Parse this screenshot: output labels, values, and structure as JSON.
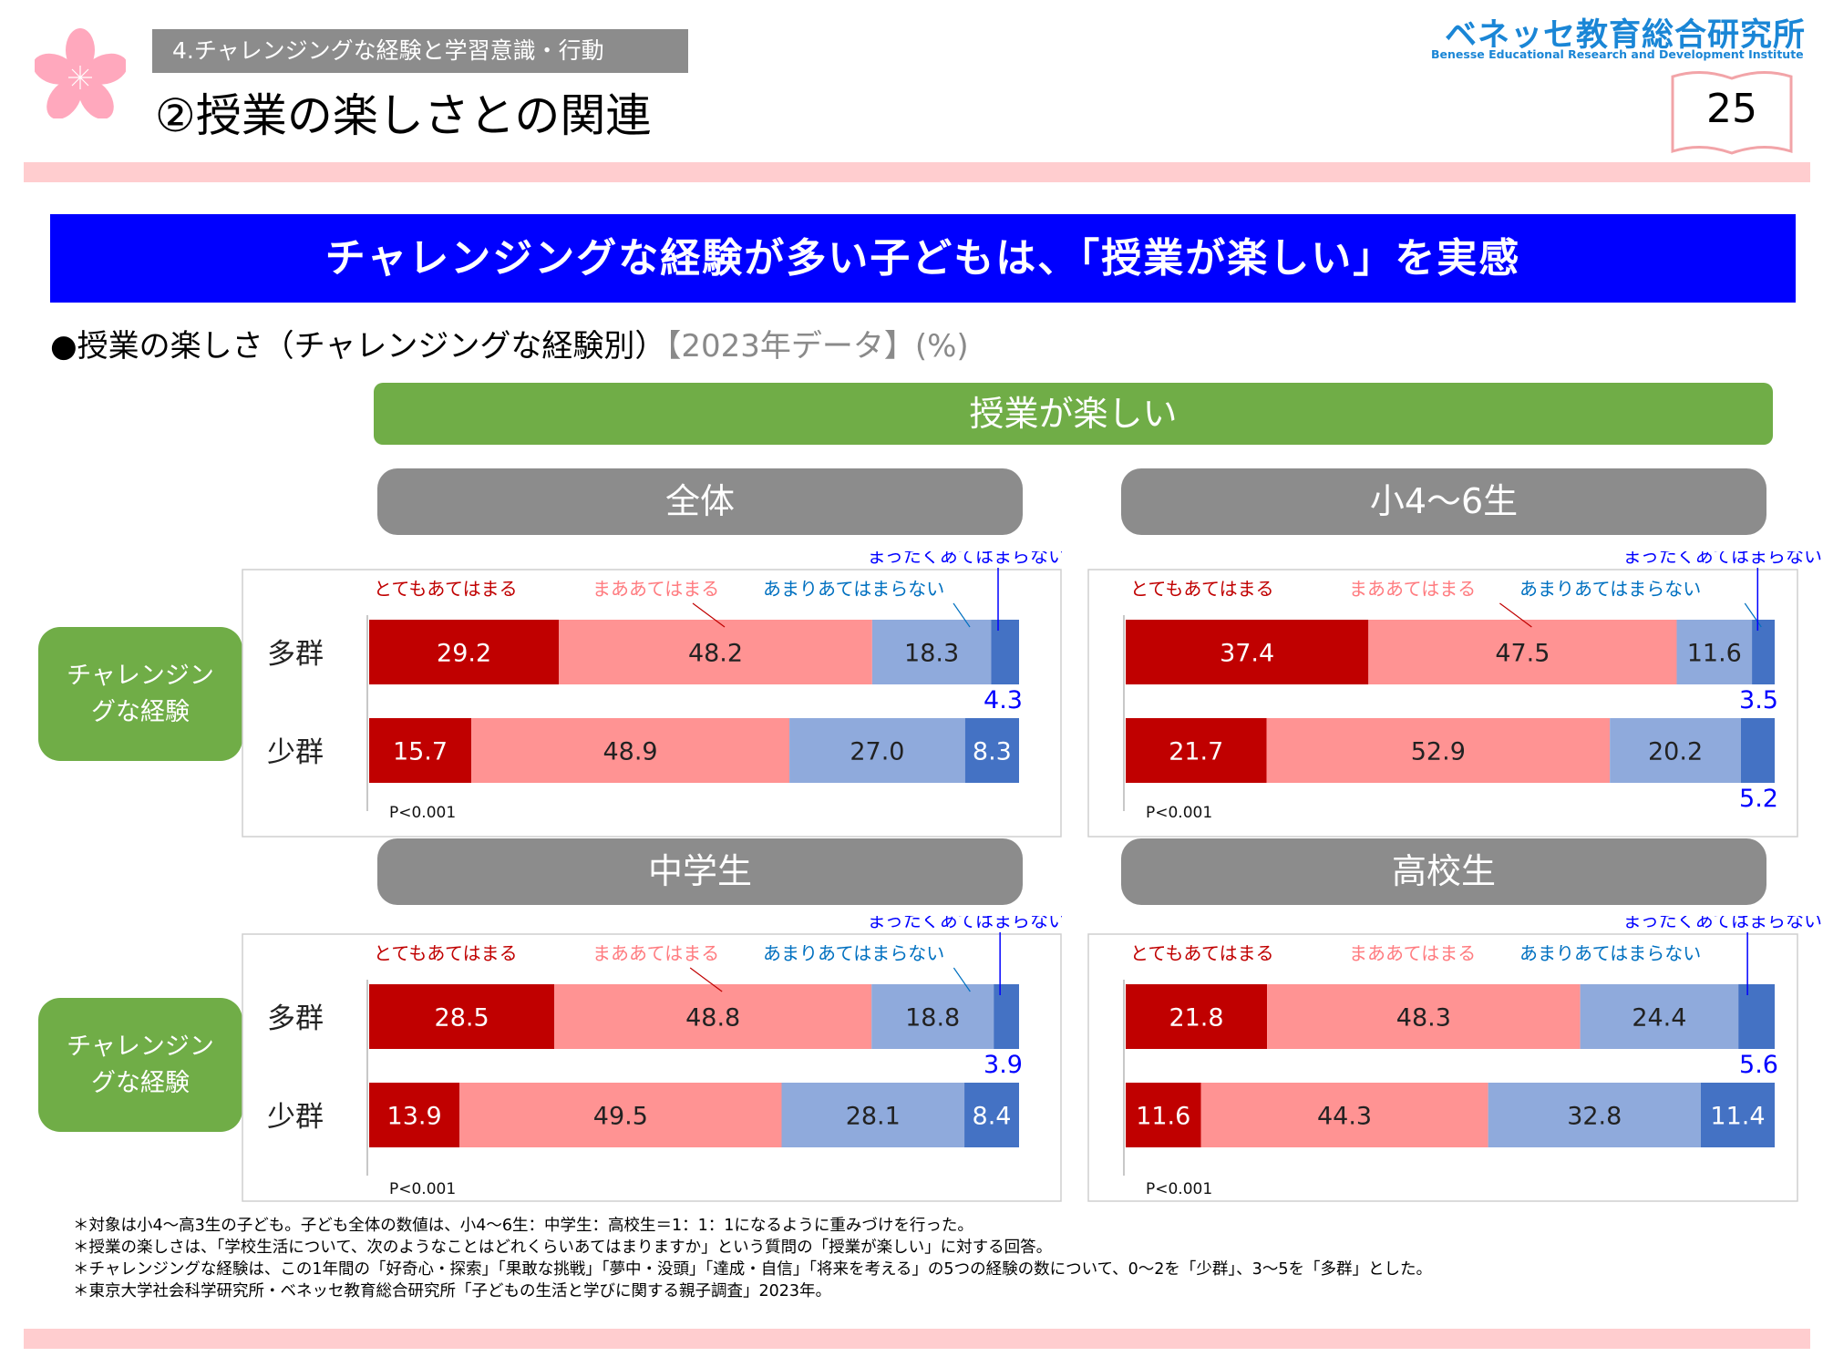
{
  "header": {
    "section_label": "4.チャレンジングな経験と学習意識・行動",
    "page_title": "②授業の楽しさとの関連",
    "logo_jp": "ベネッセ教育総合研究所",
    "logo_en": "Benesse  Educational Research and Development Institute",
    "page_number": "25"
  },
  "banner": "チャレンジングな経験が多い子どもは、「授業が楽しい」を実感",
  "subtitle": {
    "main": "●授業の楽しさ（チャレンジングな経験別）",
    "note": "【2023年データ】(%)"
  },
  "green_header": "授業が楽しい",
  "row_group_label": "チャレンジングな経験",
  "colors": {
    "very": "#c00000",
    "somewhat": "#ff9393",
    "not_much": "#8faadc",
    "not_at_all": "#4472c4",
    "very_text": "#c00000",
    "somewhat_text": "#ff7c80",
    "not_much_text": "#0070c0",
    "not_at_all_text": "#0000ff"
  },
  "chart_data": [
    {
      "type": "bar",
      "orientation": "horizontal-stacked-100",
      "title": "全体",
      "categories": [
        "多群",
        "少群"
      ],
      "series": [
        {
          "name": "とてもあてはまる",
          "values": [
            29.2,
            15.7
          ]
        },
        {
          "name": "まああてはまる",
          "values": [
            48.2,
            48.9
          ]
        },
        {
          "name": "あまりあてはまらない",
          "values": [
            18.3,
            27.0
          ]
        },
        {
          "name": "まったくあてはまらない",
          "values": [
            4.3,
            8.3
          ]
        }
      ],
      "xlim": [
        0,
        100
      ],
      "annotation": "P<0.001"
    },
    {
      "type": "bar",
      "orientation": "horizontal-stacked-100",
      "title": "小4〜6生",
      "categories": [
        "多群",
        "少群"
      ],
      "series": [
        {
          "name": "とてもあてはまる",
          "values": [
            37.4,
            21.7
          ]
        },
        {
          "name": "まああてはまる",
          "values": [
            47.5,
            52.9
          ]
        },
        {
          "name": "あまりあてはまらない",
          "values": [
            11.6,
            20.2
          ]
        },
        {
          "name": "まったくあてはまらない",
          "values": [
            3.5,
            5.2
          ]
        }
      ],
      "xlim": [
        0,
        100
      ],
      "annotation": "P<0.001"
    },
    {
      "type": "bar",
      "orientation": "horizontal-stacked-100",
      "title": "中学生",
      "categories": [
        "多群",
        "少群"
      ],
      "series": [
        {
          "name": "とてもあてはまる",
          "values": [
            28.5,
            13.9
          ]
        },
        {
          "name": "まああてはまる",
          "values": [
            48.8,
            49.5
          ]
        },
        {
          "name": "あまりあてはまらない",
          "values": [
            18.8,
            28.1
          ]
        },
        {
          "name": "まったくあてはまらない",
          "values": [
            3.9,
            8.4
          ]
        }
      ],
      "xlim": [
        0,
        100
      ],
      "annotation": "P<0.001"
    },
    {
      "type": "bar",
      "orientation": "horizontal-stacked-100",
      "title": "高校生",
      "categories": [
        "多群",
        "少群"
      ],
      "series": [
        {
          "name": "とてもあてはまる",
          "values": [
            21.8,
            11.6
          ]
        },
        {
          "name": "まああてはまる",
          "values": [
            48.3,
            44.3
          ]
        },
        {
          "name": "あまりあてはまらない",
          "values": [
            24.4,
            32.8
          ]
        },
        {
          "name": "まったくあてはまらない",
          "values": [
            5.6,
            11.4
          ]
        }
      ],
      "xlim": [
        0,
        100
      ],
      "annotation": "P<0.001"
    }
  ],
  "footnotes": [
    "＊対象は小4〜高3生の子ども。子ども全体の数値は、小4〜6生：中学生：高校生＝1：1：1になるように重みづけを行った。",
    "＊授業の楽しさは、「学校生活について、次のようなことはどれくらいあてはまりますか」という質問の「授業が楽しい」に対する回答。",
    "＊チャレンジングな経験は、この1年間の「好奇心・探索」「果敢な挑戦」「夢中・没頭」「達成・自信」「将来を考える」の5つの経験の数について、0〜2を「少群」、3〜5を「多群」とした。",
    "＊東京大学社会科学研究所・ベネッセ教育総合研究所「子どもの生活と学びに関する親子調査」2023年。"
  ]
}
